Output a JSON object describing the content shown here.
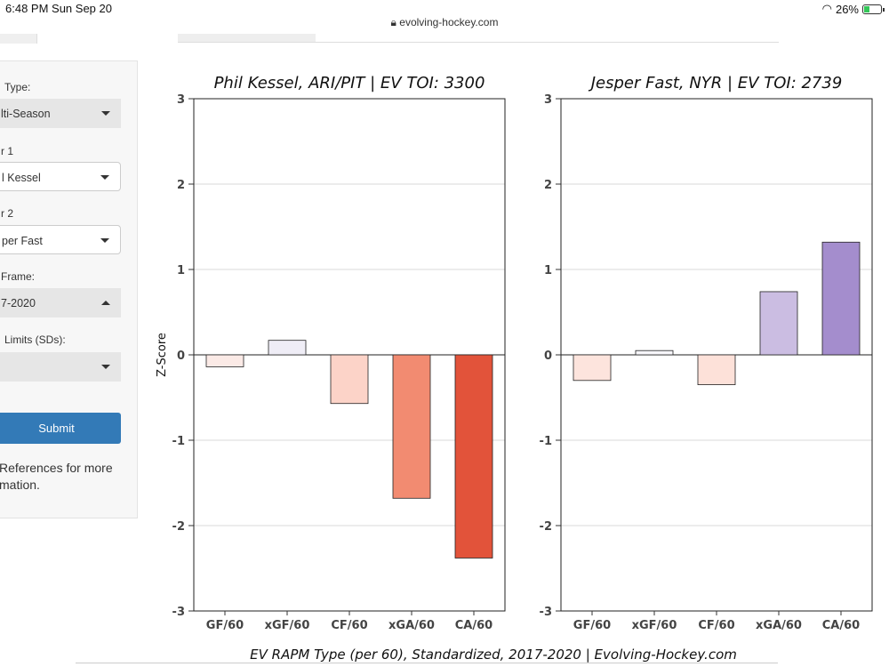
{
  "status": {
    "time": "6:48 PM   Sun Sep 20",
    "battery": "26%"
  },
  "browser": {
    "url": "evolving-hockey.com"
  },
  "sidebar": {
    "type_label": "Type:",
    "type_value": "lti-Season",
    "player1_label": "r 1",
    "player1_value": "l Kessel",
    "player2_label": "r 2",
    "player2_value": "per Fast",
    "frame_label": "Frame:",
    "frame_value": "7-2020",
    "limits_label": "Limits (SDs):",
    "limits_value": "",
    "submit_label": "Submit",
    "note_line1": "References for more",
    "note_line2": "mation."
  },
  "chart_data": [
    {
      "type": "bar",
      "title": "Phil Kessel, ARI/PIT  |  EV TOI: 3300",
      "ylabel": "Z-Score",
      "categories": [
        "GF/60",
        "xGF/60",
        "CF/60",
        "xGA/60",
        "CA/60"
      ],
      "values": [
        -0.14,
        0.17,
        -0.57,
        -1.68,
        -2.38
      ],
      "colors": [
        "#fbeae6",
        "#efedf6",
        "#fcd3c8",
        "#f28b71",
        "#e2533a"
      ],
      "ylim": [
        -3,
        3
      ],
      "yticks": [
        "3",
        "2",
        "1",
        "0",
        "-1",
        "-2",
        "-3"
      ]
    },
    {
      "type": "bar",
      "title": "Jesper Fast, NYR  |  EV TOI: 2739",
      "ylabel": "",
      "categories": [
        "GF/60",
        "xGF/60",
        "CF/60",
        "xGA/60",
        "CA/60"
      ],
      "values": [
        -0.3,
        0.05,
        -0.35,
        0.74,
        1.32
      ],
      "colors": [
        "#fde4dd",
        "#f7f6fa",
        "#fde1d9",
        "#cbbde2",
        "#a48dcd"
      ],
      "ylim": [
        -3,
        3
      ],
      "yticks": [
        "3",
        "2",
        "1",
        "0",
        "-1",
        "-2",
        "-3"
      ]
    }
  ],
  "footer": "EV RAPM Type (per 60), Standardized, 2017-2020    |    Evolving-Hockey.com"
}
